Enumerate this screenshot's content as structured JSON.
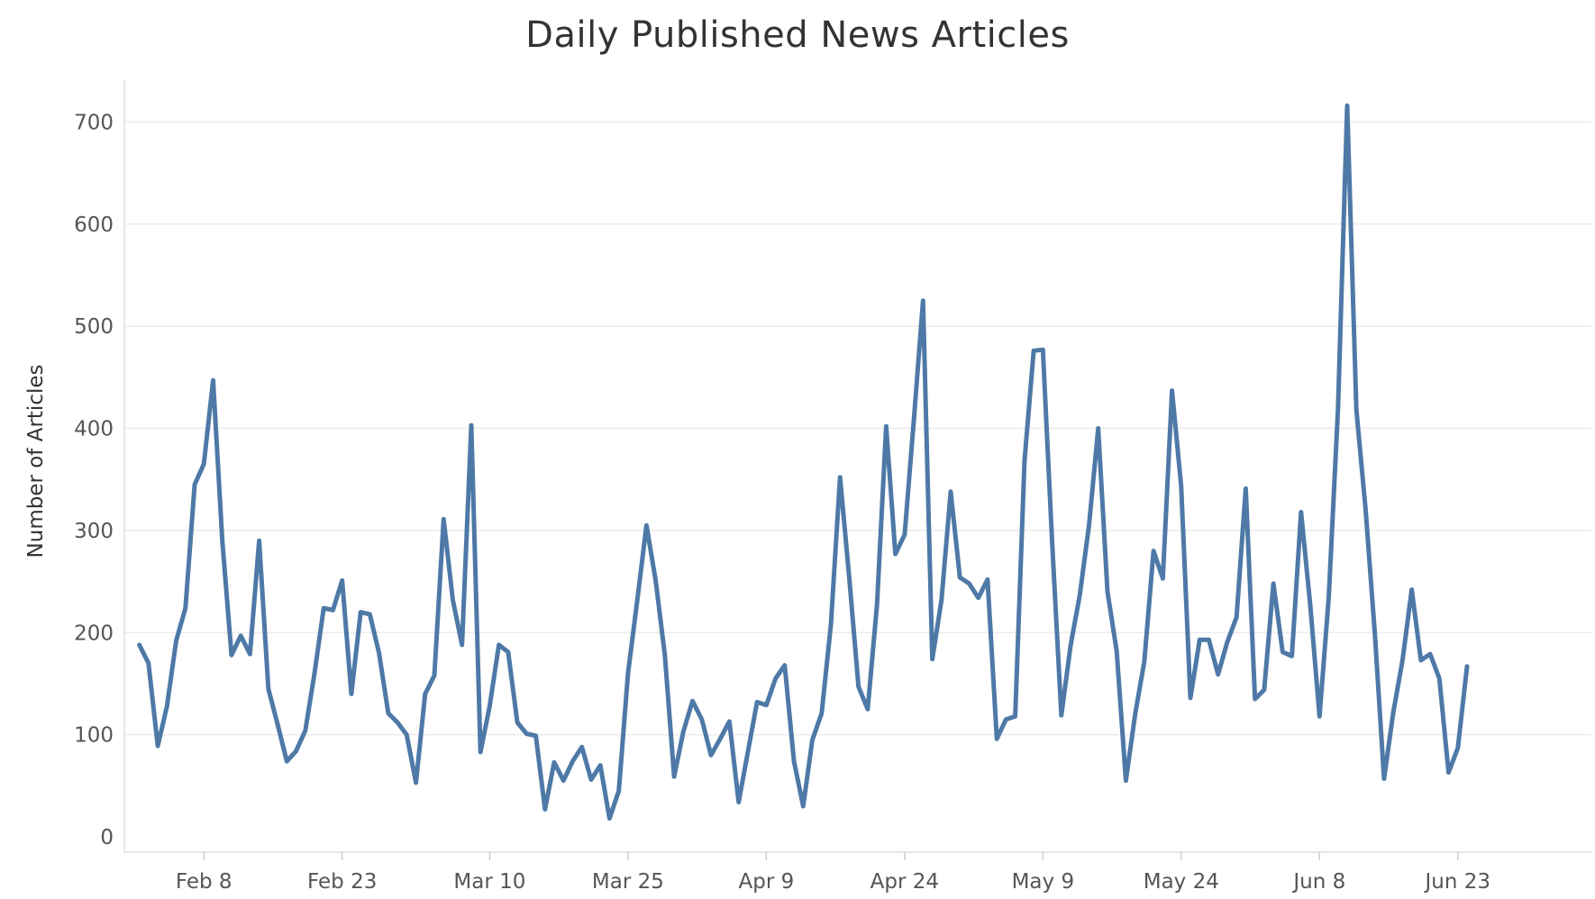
{
  "chart_data": {
    "type": "line",
    "title": "Daily Published News Articles",
    "xlabel": "",
    "ylabel": "Number of Articles",
    "x_start": "2020-02-01",
    "x_ticks": [
      "Feb 8",
      "Feb 23",
      "Mar 10",
      "Mar 25",
      "Apr 9",
      "Apr 24",
      "May 9",
      "May 24",
      "Jun 8",
      "Jun 23"
    ],
    "y_ticks": [
      0,
      100,
      200,
      300,
      400,
      500,
      600,
      700
    ],
    "ylim": [
      -15,
      760
    ],
    "grid": "horizontal",
    "colors": {
      "line": "#4e79a7",
      "grid": "#ebebeb",
      "axis": "#dddddd"
    },
    "series": [
      {
        "values": [
          188,
          170,
          89,
          128,
          192,
          224,
          345,
          365,
          447,
          290,
          178,
          197,
          179,
          290,
          145,
          110,
          74,
          84,
          104,
          160,
          224,
          222,
          251,
          140,
          220,
          218,
          180,
          121,
          112,
          100,
          53,
          140,
          158,
          311,
          232,
          188,
          403,
          83,
          128,
          188,
          181,
          112,
          101,
          99,
          27,
          73,
          55,
          74,
          88,
          56,
          70,
          18,
          45,
          160,
          231,
          305,
          251,
          178,
          59,
          103,
          133,
          115,
          80,
          96,
          113,
          34,
          83,
          132,
          129,
          155,
          168,
          74,
          30,
          95,
          121,
          207,
          352,
          253,
          147,
          125,
          227,
          402,
          277,
          296,
          408,
          525,
          174,
          232,
          338,
          254,
          248,
          234,
          252,
          96,
          115,
          118,
          368,
          476,
          477,
          288,
          119,
          187,
          237,
          305,
          400,
          240,
          182,
          55,
          120,
          172,
          280,
          253,
          437,
          343,
          136,
          193,
          193,
          159,
          191,
          215,
          341,
          135,
          144,
          248,
          181,
          177,
          318,
          226,
          118,
          234,
          419,
          716,
          418,
          320,
          199,
          57,
          122,
          173,
          242,
          173,
          179,
          155,
          63,
          87,
          167
        ]
      }
    ]
  }
}
